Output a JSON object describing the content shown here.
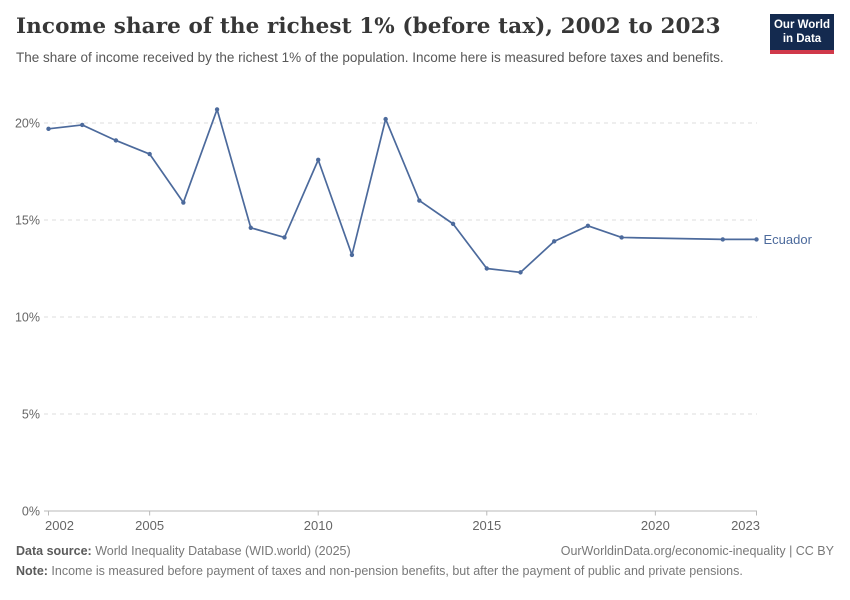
{
  "header": {
    "title": "Income share of the richest 1% (before tax), 2002 to 2023",
    "subtitle": "The share of income received by the richest 1% of the population. Income here is measured before taxes and benefits.",
    "logo": {
      "line1": "Our World",
      "line2": "in Data"
    }
  },
  "chart_data": {
    "type": "line",
    "title": "Income share of the richest 1% (before tax), 2002 to 2023",
    "xlabel": "",
    "ylabel": "",
    "xlim": [
      2002,
      2023
    ],
    "ylim": [
      0,
      20
    ],
    "x_ticks": [
      2002,
      2005,
      2010,
      2015,
      2020,
      2023
    ],
    "y_ticks": [
      0,
      5,
      10,
      15,
      20
    ],
    "y_tick_suffix": "%",
    "grid": "horizontal-dashed",
    "legend_position": "end-of-line",
    "series": [
      {
        "name": "Ecuador",
        "color": "#4C6A9C",
        "points": [
          [
            2002,
            19.7
          ],
          [
            2003,
            19.9
          ],
          [
            2004,
            19.1
          ],
          [
            2005,
            18.4
          ],
          [
            2006,
            15.9
          ],
          [
            2007,
            20.7
          ],
          [
            2008,
            14.6
          ],
          [
            2009,
            14.1
          ],
          [
            2010,
            18.1
          ],
          [
            2011,
            13.2
          ],
          [
            2012,
            20.2
          ],
          [
            2013,
            16.0
          ],
          [
            2014,
            14.8
          ],
          [
            2015,
            12.5
          ],
          [
            2016,
            12.3
          ],
          [
            2017,
            13.9
          ],
          [
            2018,
            14.7
          ],
          [
            2019,
            14.1
          ],
          [
            2022,
            14.0
          ],
          [
            2023,
            14.0
          ]
        ]
      }
    ]
  },
  "footer": {
    "datasource_label": "Data source:",
    "datasource": " World Inequality Database (WID.world) (2025)",
    "attribution": "OurWorldinData.org/economic-inequality | CC BY",
    "note_label": "Note:",
    "note": " Income is measured before payment of taxes and non-pension benefits, but after the payment of public and private pensions."
  },
  "colors": {
    "line": "#4C6A9C",
    "grid": "#dedede",
    "axis": "#b9b9b9",
    "tick_label": "#666666",
    "title": "#373737",
    "subtitle": "#575757",
    "footer": "#787878",
    "logo_bg": "#142A4F",
    "logo_red": "#D0394A"
  }
}
